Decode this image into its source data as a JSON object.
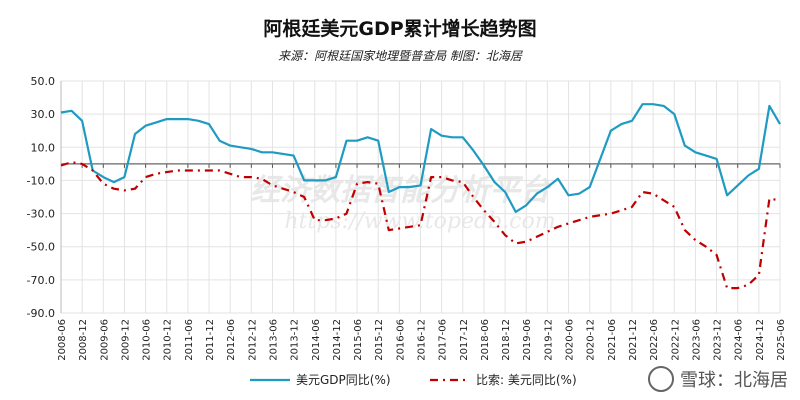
{
  "chart_data": {
    "type": "line",
    "title": "阿根廷美元GDP累计增长趋势图",
    "subtitle": "来源：阿根廷国家地理暨普查局 制图：北海居",
    "xlabel": "",
    "ylabel": "",
    "ylim": [
      -90,
      50
    ],
    "yticks": [
      "50.0",
      "30.0",
      "10.0",
      "-10.0",
      "-30.0",
      "-50.0",
      "-70.0",
      "-90.0"
    ],
    "xticks": [
      "2008-06",
      "2008-12",
      "2009-06",
      "2009-12",
      "2010-06",
      "2010-12",
      "2011-06",
      "2011-12",
      "2012-06",
      "2012-12",
      "2013-06",
      "2013-12",
      "2014-06",
      "2014-12",
      "2015-06",
      "2015-12",
      "2016-06",
      "2016-12",
      "2017-06",
      "2017-12",
      "2018-06",
      "2018-12",
      "2019-06",
      "2019-12",
      "2020-06",
      "2020-12",
      "2021-06",
      "2021-12",
      "2022-06",
      "2022-12",
      "2023-06",
      "2023-12",
      "2024-06",
      "2024-12",
      "2025-06"
    ],
    "x_frequency": "quarterly, 2008-06 to 2025-06",
    "grid": true,
    "legend": "bottom",
    "series": [
      {
        "name": "美元GDP同比(%)",
        "color": "#1f9bc2",
        "style": "solid",
        "values": [
          31,
          32,
          26,
          -4,
          -8,
          -11,
          -8,
          18,
          23,
          25,
          27,
          27,
          27,
          26,
          24,
          14,
          11,
          10,
          9,
          7,
          7,
          6,
          5,
          -10,
          -10,
          -10,
          -8,
          14,
          14,
          16,
          14,
          -17,
          -14,
          -14,
          -13,
          21,
          17,
          16,
          16,
          8,
          -1,
          -11,
          -17,
          -29,
          -25,
          -18,
          -14,
          -9,
          -19,
          -18,
          -14,
          3,
          20,
          24,
          26,
          36,
          36,
          35,
          30,
          11,
          7,
          5,
          3,
          -19,
          -13,
          -7,
          -3,
          35,
          24
        ]
      },
      {
        "name": "比索: 美元同比(%)",
        "color": "#c00000",
        "style": "dashdot",
        "values": [
          -1,
          1,
          0,
          -4,
          -12,
          -15,
          -16,
          -15,
          -8,
          -6,
          -5,
          -4,
          -4,
          -4,
          -4,
          -4,
          -6,
          -8,
          -8,
          -9,
          -13,
          -15,
          -17,
          -20,
          -34,
          -34,
          -33,
          -30,
          -12,
          -11,
          -12,
          -40,
          -39,
          -38,
          -37,
          -8,
          -8,
          -10,
          -11,
          -20,
          -28,
          -35,
          -43,
          -48,
          -47,
          -44,
          -41,
          -38,
          -36,
          -34,
          -32,
          -31,
          -30,
          -28,
          -26,
          -17,
          -18,
          -22,
          -26,
          -40,
          -46,
          -50,
          -55,
          -75,
          -75,
          -73,
          -67,
          -21,
          -22
        ]
      }
    ]
  },
  "background_watermark": "经济数据智能分析平台 https://www.topedb.com",
  "watermark": "雪球：北海居"
}
